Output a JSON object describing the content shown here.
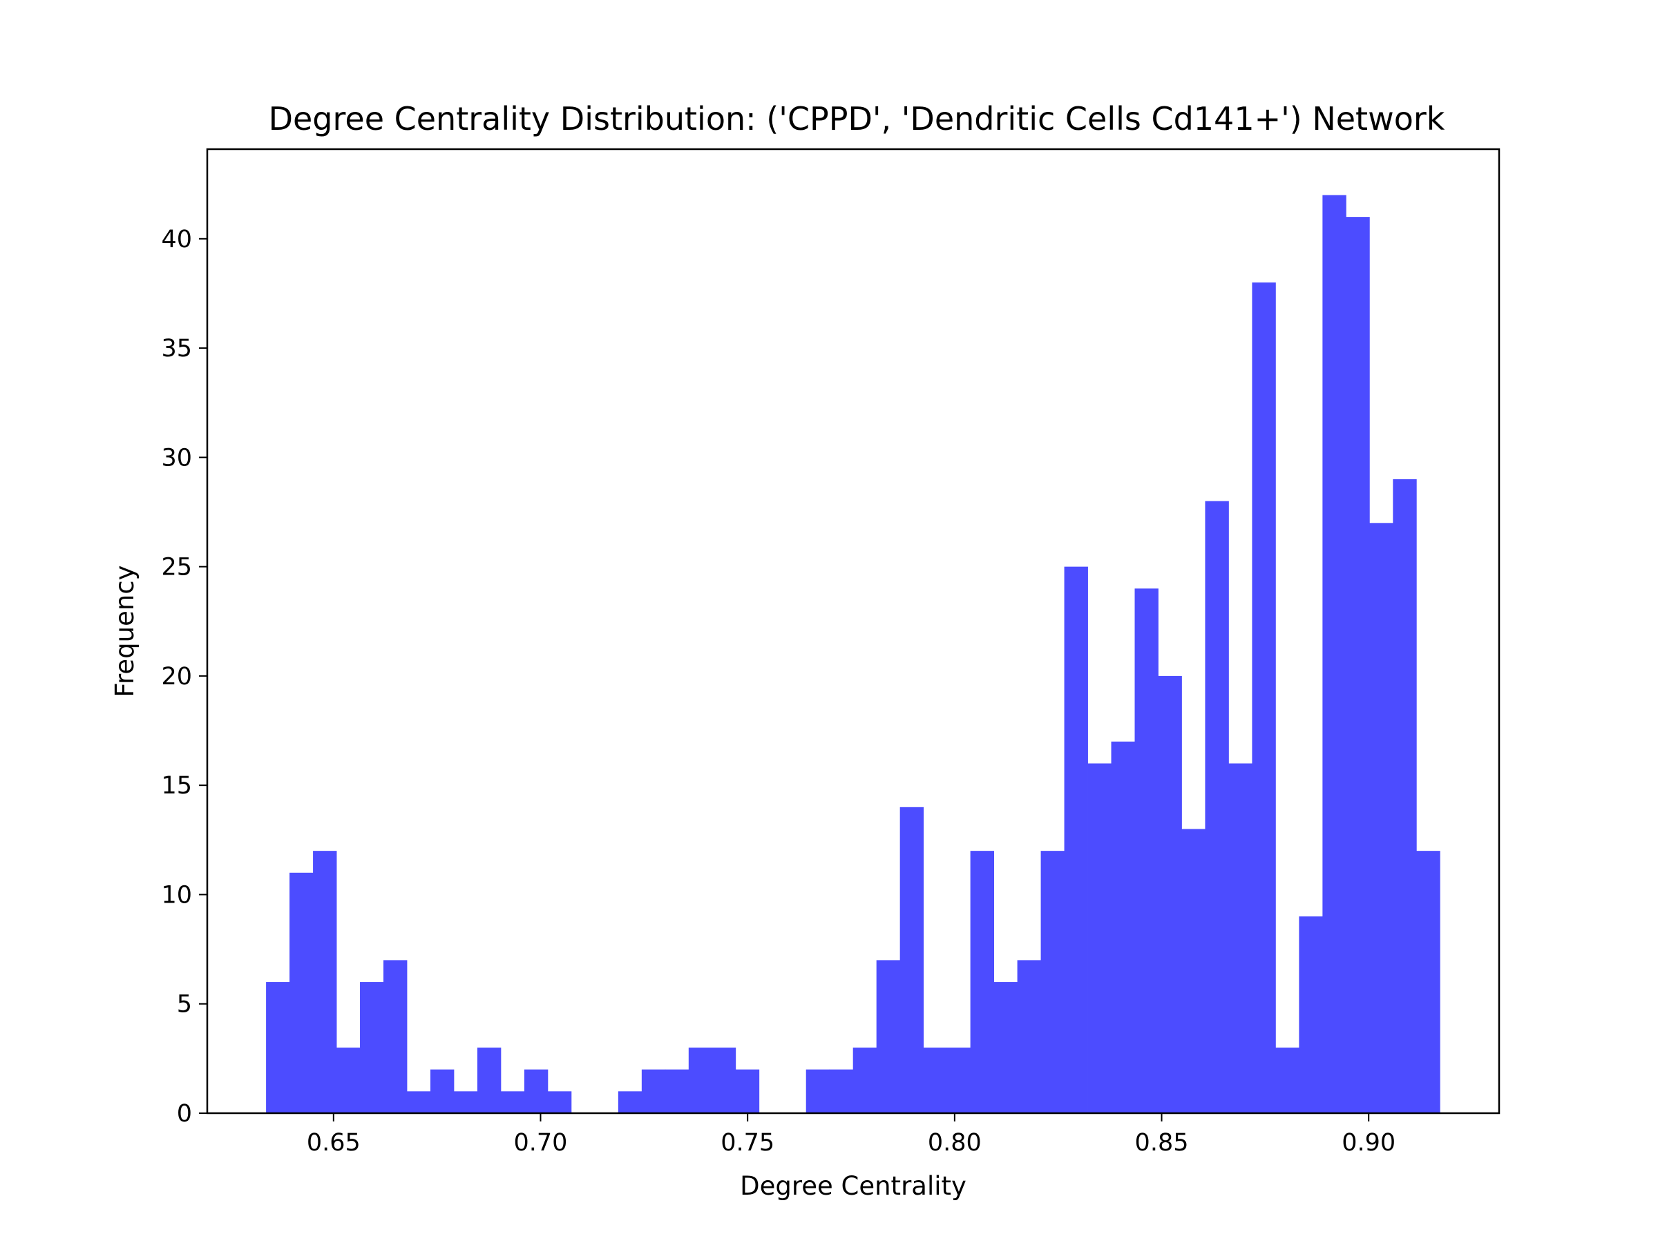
{
  "chart_data": {
    "type": "bar",
    "title": "Degree Centrality Distribution: ('CPPD', 'Dendritic Cells Cd141+') Network",
    "xlabel": "Degree Centrality",
    "ylabel": "Frequency",
    "xlim": [
      0.6195,
      0.9315
    ],
    "ylim": [
      0,
      44.1
    ],
    "xticks": [
      0.65,
      0.7,
      0.75,
      0.8,
      0.85,
      0.9
    ],
    "xtick_labels": [
      "0.65",
      "0.70",
      "0.75",
      "0.80",
      "0.85",
      "0.90"
    ],
    "yticks": [
      0,
      5,
      10,
      15,
      20,
      25,
      30,
      35,
      40
    ],
    "ytick_labels": [
      "0",
      "5",
      "10",
      "15",
      "20",
      "25",
      "30",
      "35",
      "40"
    ],
    "grid": false,
    "bar_color": "#4c4cff",
    "bin_start": 0.6337,
    "bin_width": 0.00567,
    "values": [
      6,
      11,
      12,
      3,
      6,
      7,
      1,
      2,
      1,
      3,
      1,
      2,
      1,
      0,
      0,
      1,
      2,
      2,
      3,
      3,
      2,
      0,
      0,
      2,
      2,
      3,
      7,
      14,
      3,
      3,
      12,
      6,
      7,
      12,
      25,
      16,
      17,
      24,
      20,
      13,
      28,
      16,
      38,
      3,
      9,
      42,
      41,
      27,
      29,
      12
    ]
  }
}
